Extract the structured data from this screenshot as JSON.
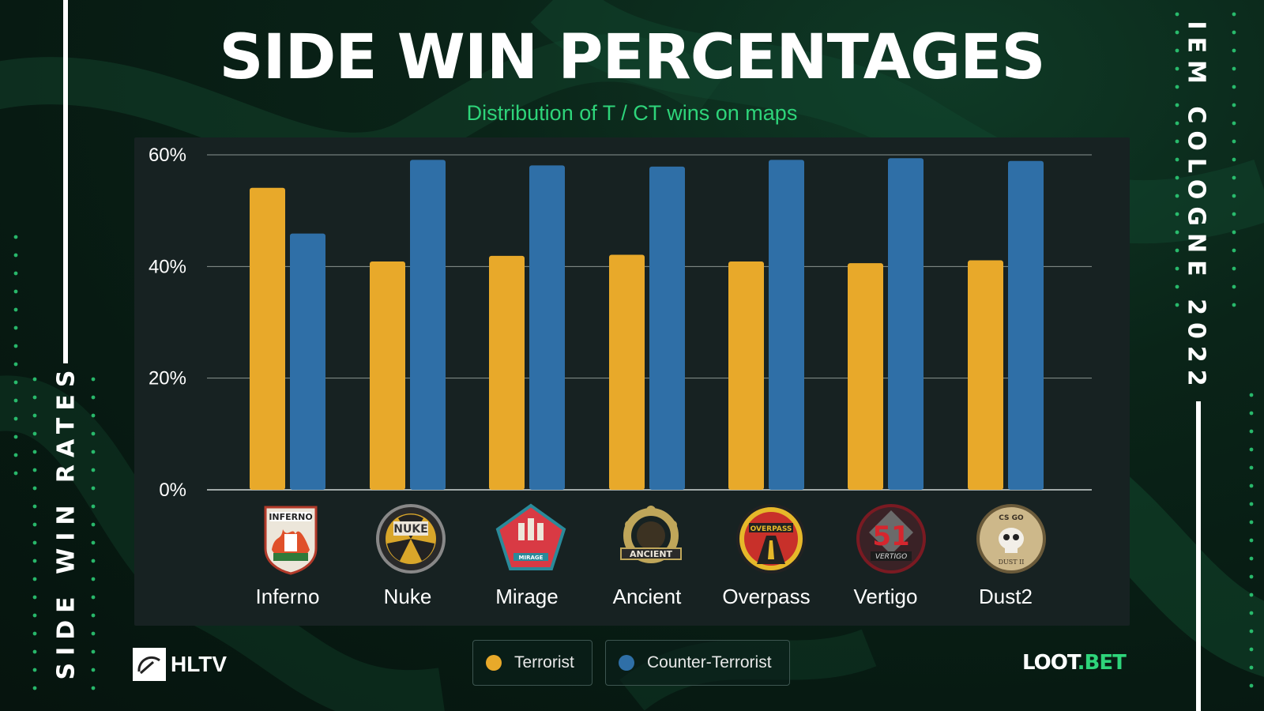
{
  "header": {
    "title": "SIDE WIN PERCENTAGES",
    "subtitle": "Distribution of T / CT wins on maps"
  },
  "side_left_text": "SIDE WIN RATES",
  "side_right_text": "IEM COLOGNE 2022",
  "brand": {
    "hltv": "HLTV",
    "loot_main": "LOOT",
    "loot_accent": ".BET"
  },
  "colors": {
    "terrorist": "#e8a92a",
    "counter_terrorist": "#2f6fa7",
    "accent_green": "#2ed47a",
    "panel": "#172222"
  },
  "chart_data": {
    "type": "bar",
    "categories": [
      "Inferno",
      "Nuke",
      "Mirage",
      "Ancient",
      "Overpass",
      "Vertigo",
      "Dust2"
    ],
    "series": [
      {
        "name": "Terrorist",
        "color": "#e8a92a",
        "values": [
          54.1,
          40.9,
          41.9,
          42.1,
          40.9,
          40.6,
          41.1
        ]
      },
      {
        "name": "Counter-Terrorist",
        "color": "#2f6fa7",
        "values": [
          45.9,
          59.1,
          58.1,
          57.9,
          59.1,
          59.4,
          58.9
        ]
      }
    ],
    "y_ticks": [
      "0%",
      "20%",
      "40%",
      "60%"
    ],
    "ylim": [
      0,
      60
    ],
    "grid": true,
    "legend_position": "bottom"
  },
  "map_icons": [
    "inferno-emblem",
    "nuke-emblem",
    "mirage-emblem",
    "ancient-emblem",
    "overpass-emblem",
    "vertigo-emblem",
    "dust2-emblem"
  ]
}
